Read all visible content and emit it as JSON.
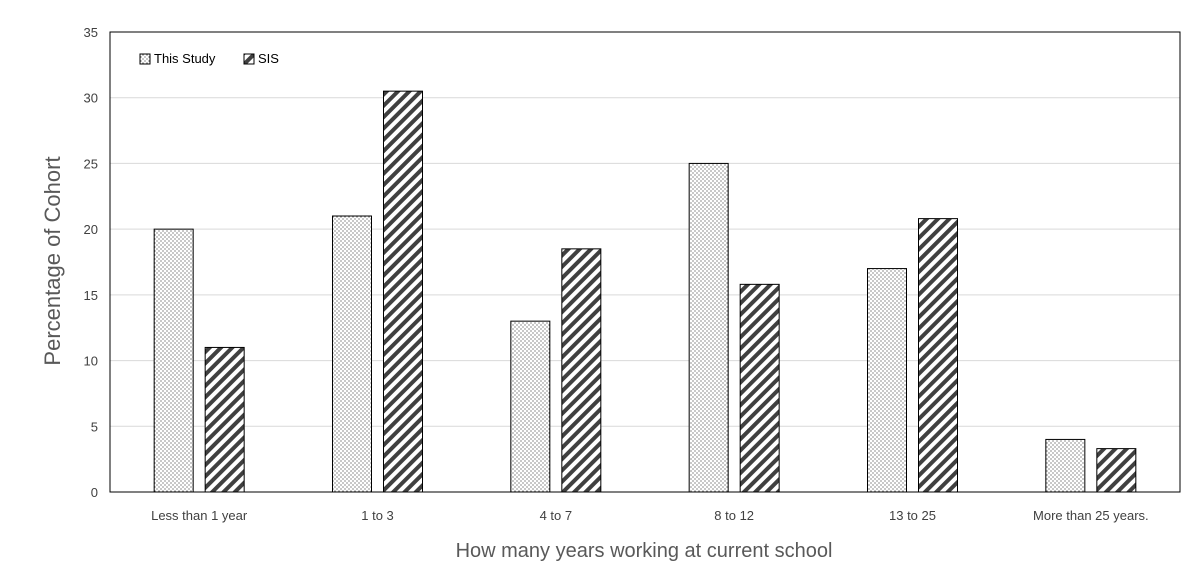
{
  "chart_data": {
    "type": "bar",
    "title": "",
    "xlabel": "How many years working at current school",
    "ylabel": "Percentage of Cohort",
    "categories": [
      "Less than 1 year",
      "1 to 3",
      "4 to 7",
      "8 to 12",
      "13 to 25",
      "More than 25 years."
    ],
    "series": [
      {
        "name": "This Study",
        "pattern": "dots",
        "values": [
          20,
          21,
          13,
          25,
          17,
          4
        ]
      },
      {
        "name": "SIS",
        "pattern": "diagonal-hatch",
        "values": [
          11,
          30.5,
          18.5,
          15.8,
          20.8,
          3.3
        ]
      }
    ],
    "ylim": [
      0,
      35
    ],
    "yticks": [
      0,
      5,
      10,
      15,
      20,
      25,
      30,
      35
    ],
    "grid": true,
    "legend_position": "top-left",
    "colors": {
      "bar_stroke": "#000000",
      "gridline": "#d9d9d9",
      "axis_text": "#595959",
      "pattern_ink": "#404040"
    }
  }
}
